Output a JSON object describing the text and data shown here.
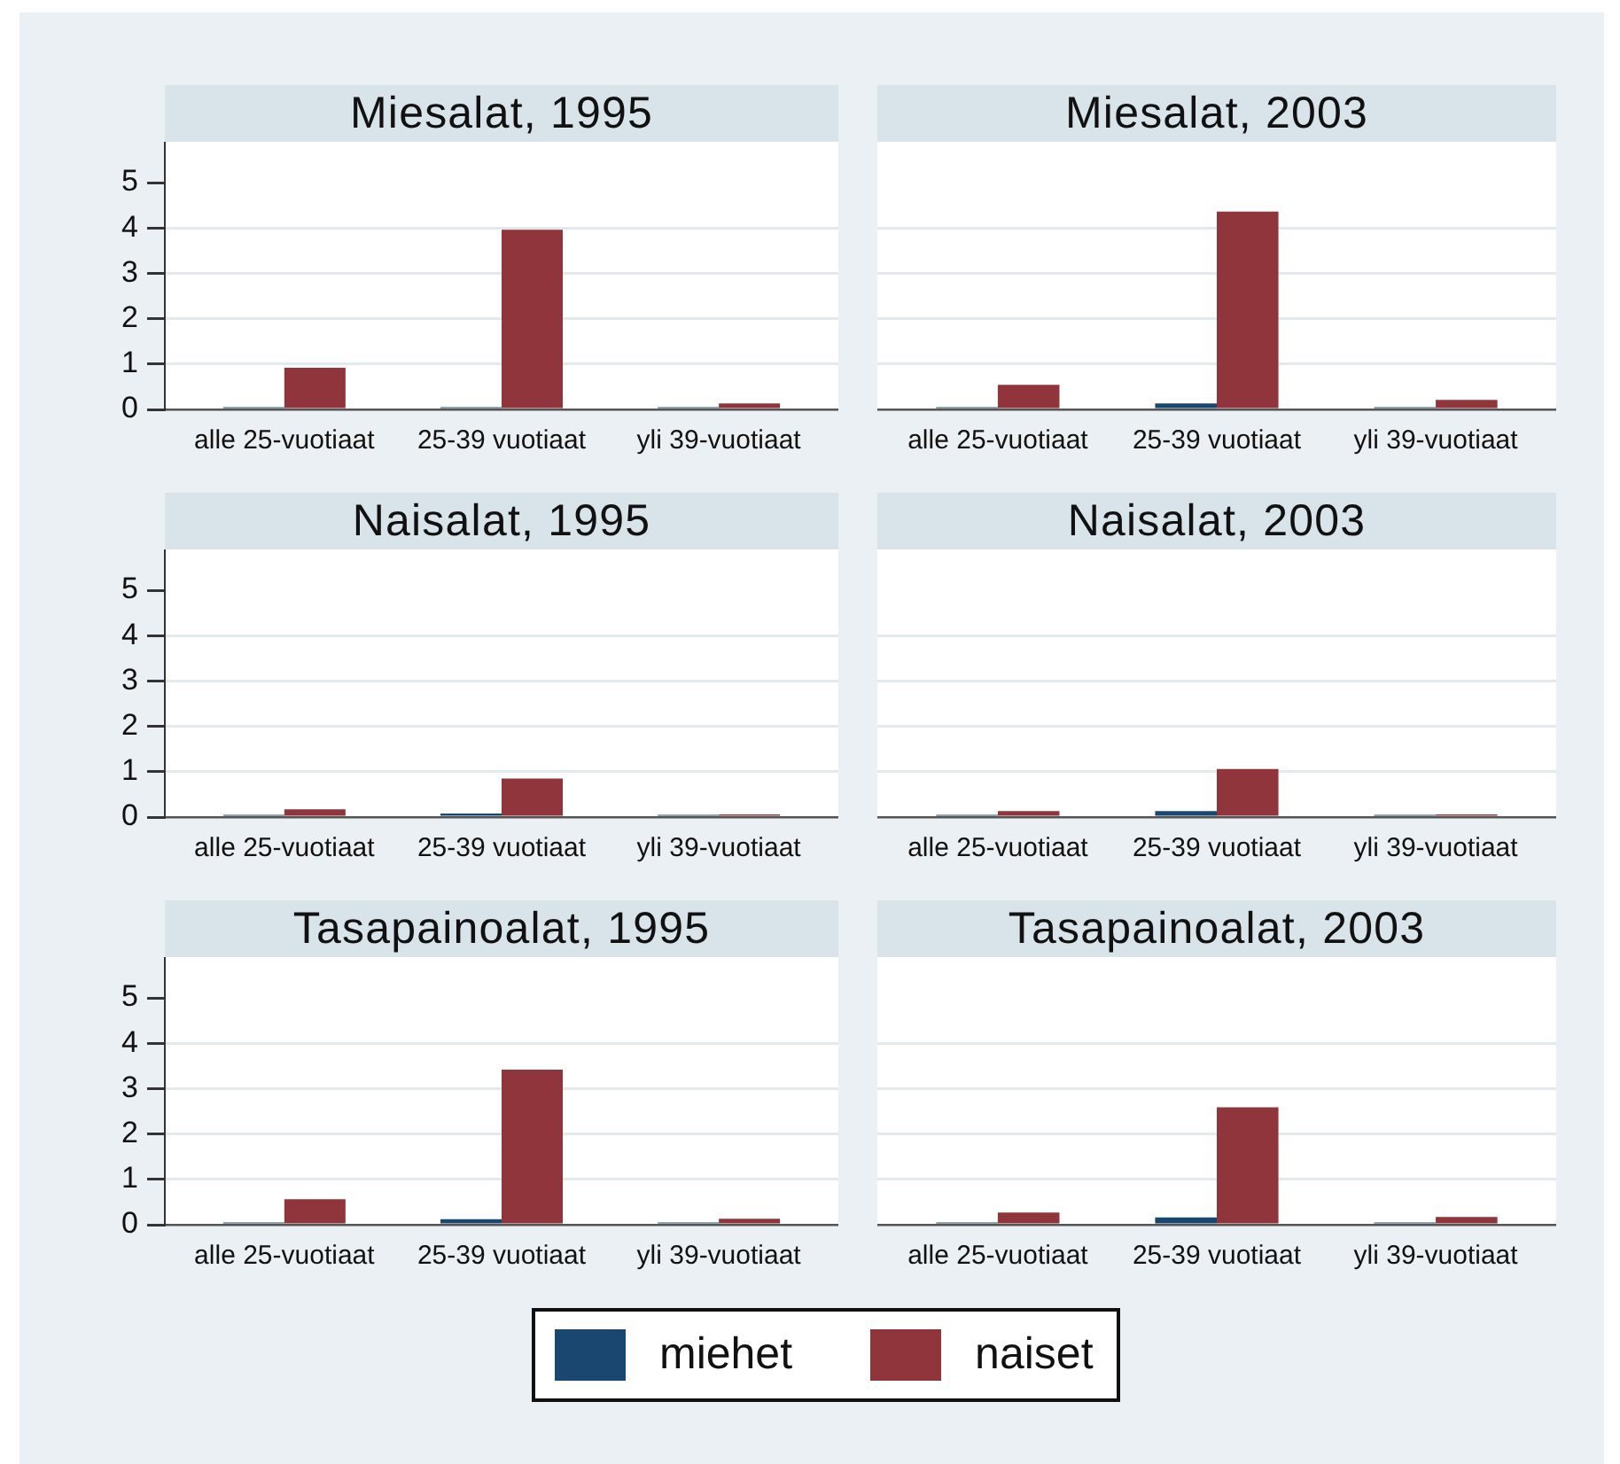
{
  "chart_data": [
    {
      "type": "bar",
      "title": "Miesalat, 1995",
      "categories": [
        "alle 25-vuotiaat",
        "25-39 vuotiaat",
        "yli 39-vuotiaat"
      ],
      "series": [
        {
          "name": "miehet",
          "color": "#1a476f",
          "values": [
            0.05,
            0.05,
            0.05
          ]
        },
        {
          "name": "naiset",
          "color": "#90353b",
          "values": [
            0.92,
            3.96,
            0.13
          ]
        }
      ],
      "ylim": [
        0,
        5.9
      ],
      "yticks": [
        0,
        1,
        2,
        3,
        4,
        5
      ],
      "grid": "y",
      "legend": "bottom"
    },
    {
      "type": "bar",
      "title": "Miesalat, 2003",
      "categories": [
        "alle 25-vuotiaat",
        "25-39 vuotiaat",
        "yli 39-vuotiaat"
      ],
      "series": [
        {
          "color": "#1a476f",
          "values": [
            0.05,
            0.13,
            0.05
          ]
        },
        {
          "color": "#90353b",
          "values": [
            0.54,
            4.36,
            0.21
          ]
        }
      ],
      "ylim": [
        0,
        5.9
      ],
      "yticks": [
        0,
        1,
        2,
        3,
        4,
        5
      ],
      "grid": "y",
      "tick_labels": "x"
    },
    {
      "type": "bar",
      "title": "Naisalat, 1995",
      "categories": [
        "alle 25-vuotiaat",
        "25-39 vuotiaat",
        "yli 39-vuotiaat"
      ],
      "series": [
        {
          "color": "#1a476f",
          "values": [
            0.05,
            0.08,
            0.05
          ]
        },
        {
          "color": "#90353b",
          "values": [
            0.17,
            0.85,
            0.06
          ]
        }
      ],
      "ylim": [
        0,
        5.9
      ],
      "yticks": [
        0,
        1,
        2,
        3,
        4,
        5
      ],
      "grid": "y"
    },
    {
      "type": "bar",
      "title": "Naisalat, 2003",
      "categories": [
        "alle 25-vuotiaat",
        "25-39 vuotiaat",
        "yli 39-vuotiaat"
      ],
      "series": [
        {
          "color": "#1a476f",
          "values": [
            0.05,
            0.13,
            0.05
          ]
        },
        {
          "color": "#90353b",
          "values": [
            0.13,
            1.06,
            0.06
          ]
        }
      ],
      "ylim": [
        0,
        5.9
      ],
      "yticks": [
        0,
        1,
        2,
        3,
        4,
        5
      ],
      "grid": "y",
      "tick_labels": "x"
    },
    {
      "type": "bar",
      "title": "Tasapainoalat, 1995",
      "categories": [
        "alle 25-vuotiaat",
        "25-39 vuotiaat",
        "yli 39-vuotiaat"
      ],
      "series": [
        {
          "color": "#1a476f",
          "values": [
            0.05,
            0.12,
            0.05
          ]
        },
        {
          "color": "#90353b",
          "values": [
            0.56,
            3.42,
            0.13
          ]
        }
      ],
      "ylim": [
        0,
        5.9
      ],
      "yticks": [
        0,
        1,
        2,
        3,
        4,
        5
      ],
      "grid": "y"
    },
    {
      "type": "bar",
      "title": "Tasapainoalat, 2003",
      "categories": [
        "alle 25-vuotiaat",
        "25-39 vuotiaat",
        "yli 39-vuotiaat"
      ],
      "series": [
        {
          "color": "#1a476f",
          "values": [
            0.05,
            0.16,
            0.05
          ]
        },
        {
          "color": "#90353b",
          "values": [
            0.27,
            2.59,
            0.17
          ]
        }
      ],
      "ylim": [
        0,
        5.9
      ],
      "yticks": [
        0,
        1,
        2,
        3,
        4,
        5
      ],
      "grid": "y",
      "tick_labels": "x"
    }
  ]
}
